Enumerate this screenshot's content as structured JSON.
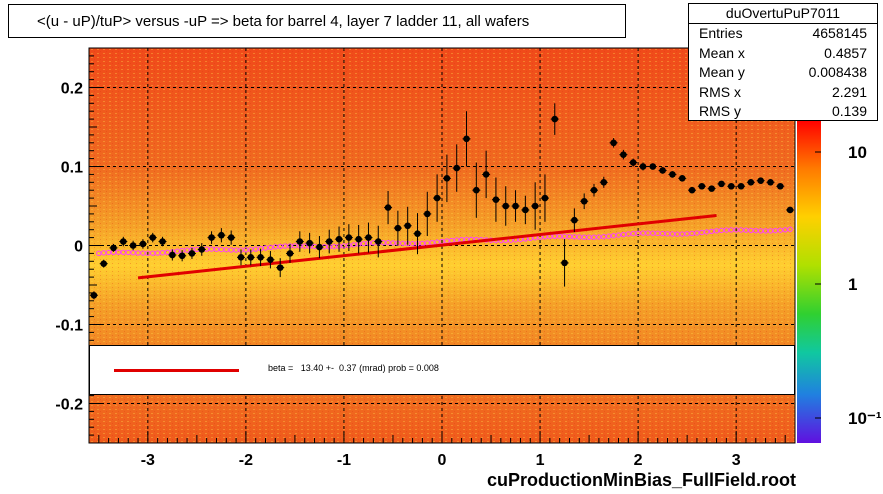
{
  "title": "<(u - uP)/tuP> versus  -uP => beta for barrel 4, layer 7 ladder 11, all wafers",
  "stats": {
    "name": "duOvertuPuP7011",
    "rows": [
      {
        "label": "Entries",
        "value": "4658145"
      },
      {
        "label": "Mean x",
        "value": "0.4857"
      },
      {
        "label": "Mean y",
        "value": "0.008438"
      },
      {
        "label": "RMS x",
        "value": "2.291"
      },
      {
        "label": "RMS y",
        "value": "0.139"
      }
    ]
  },
  "legend": {
    "fit_text": "beta =   13.40 +-  0.37 (mrad) prob = 0.008",
    "line_color": "#e00000"
  },
  "footer": "cuProductionMinBias_FullField.root",
  "colors": {
    "points": "#000000",
    "fit_line": "#e00000",
    "profile_circles": "#ff40ff"
  },
  "chart_data": {
    "type": "scatter",
    "xlim": [
      -3.6,
      3.6
    ],
    "ylim": [
      -0.25,
      0.25
    ],
    "xticks": [
      -3,
      -2,
      -1,
      0,
      1,
      2,
      3
    ],
    "yticks": [
      -0.2,
      -0.1,
      0,
      0.1,
      0.2
    ],
    "colorbar": {
      "scale": "log",
      "tick_labels": [
        "10",
        "1",
        "10⁻¹"
      ]
    },
    "grid": true,
    "fit": {
      "slope": 0.0134,
      "intercept": 0.0005,
      "x_range": [
        -3.1,
        2.8
      ]
    },
    "series": [
      {
        "type": "points_with_errors",
        "x": [
          -3.55,
          -3.45,
          -3.35,
          -3.25,
          -3.15,
          -3.05,
          -2.95,
          -2.85,
          -2.75,
          -2.65,
          -2.55,
          -2.45,
          -2.35,
          -2.25,
          -2.15,
          -2.05,
          -1.95,
          -1.85,
          -1.75,
          -1.65,
          -1.55,
          -1.45,
          -1.35,
          -1.25,
          -1.15,
          -1.05,
          -0.95,
          -0.85,
          -0.75,
          -0.65,
          -0.55,
          -0.45,
          -0.35,
          -0.25,
          -0.15,
          -0.05,
          0.05,
          0.15,
          0.25,
          0.35,
          0.45,
          0.55,
          0.65,
          0.75,
          0.85,
          0.95,
          1.05,
          1.15,
          1.25,
          1.35,
          1.45,
          1.55,
          1.65,
          1.75,
          1.85,
          1.95,
          2.05,
          2.15,
          2.25,
          2.35,
          2.45,
          2.55,
          2.65,
          2.75,
          2.85,
          2.95,
          3.05,
          3.15,
          3.25,
          3.35,
          3.45,
          3.55
        ],
        "y": [
          -0.063,
          -0.023,
          -0.003,
          0.005,
          0.0,
          0.002,
          0.01,
          0.005,
          -0.012,
          -0.013,
          -0.01,
          -0.005,
          0.01,
          0.013,
          0.01,
          -0.015,
          -0.015,
          -0.015,
          -0.018,
          -0.028,
          -0.01,
          0.005,
          0.003,
          -0.002,
          0.005,
          0.008,
          0.01,
          0.008,
          0.01,
          0.005,
          0.048,
          0.022,
          0.025,
          0.015,
          0.04,
          0.06,
          0.085,
          0.098,
          0.135,
          0.07,
          0.09,
          0.058,
          0.05,
          0.05,
          0.045,
          0.05,
          0.06,
          0.16,
          -0.022,
          0.032,
          0.056,
          0.07,
          0.08,
          0.13,
          0.115,
          0.105,
          0.1,
          0.1,
          0.095,
          0.09,
          0.085,
          0.07,
          0.075,
          0.072,
          0.078,
          0.075,
          0.075,
          0.08,
          0.082,
          0.08,
          0.075,
          0.045
        ],
        "yerr": [
          0.005,
          0.005,
          0.005,
          0.006,
          0.006,
          0.006,
          0.006,
          0.006,
          0.007,
          0.007,
          0.007,
          0.008,
          0.008,
          0.009,
          0.009,
          0.01,
          0.01,
          0.011,
          0.011,
          0.012,
          0.012,
          0.013,
          0.013,
          0.014,
          0.015,
          0.016,
          0.017,
          0.018,
          0.019,
          0.02,
          0.021,
          0.022,
          0.024,
          0.026,
          0.028,
          0.03,
          0.03,
          0.03,
          0.035,
          0.035,
          0.03,
          0.028,
          0.025,
          0.02,
          0.018,
          0.03,
          0.03,
          0.02,
          0.03,
          0.015,
          0.01,
          0.008,
          0.007,
          0.006,
          0.006,
          0.005,
          0.005,
          0.004,
          0.004,
          0.004,
          0.004,
          0.003,
          0.003,
          0.003,
          0.003,
          0.003,
          0.003,
          0.003,
          0.003,
          0.003,
          0.003,
          0.003
        ]
      },
      {
        "type": "circles",
        "note_color": "profile_circles"
      }
    ]
  }
}
